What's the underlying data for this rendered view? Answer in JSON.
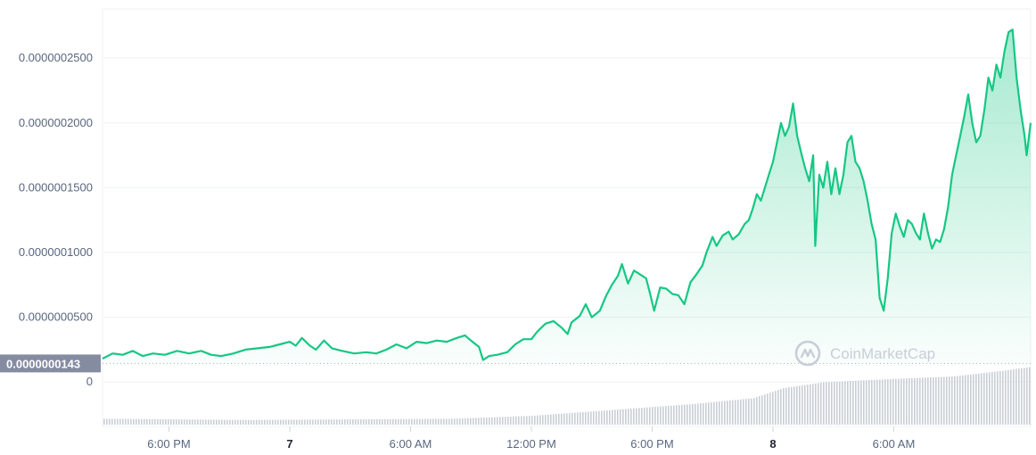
{
  "chart_data": {
    "type": "area",
    "y_ticks": [
      {
        "value": 2.5e-07,
        "label": "0.0000002500"
      },
      {
        "value": 2e-07,
        "label": "0.0000002000"
      },
      {
        "value": 1.5e-07,
        "label": "0.0000001500"
      },
      {
        "value": 1e-07,
        "label": "0.0000001000"
      },
      {
        "value": 5e-08,
        "label": "0.0000000500"
      }
    ],
    "ylim": [
      1.25e-08,
      2.88e-07
    ],
    "volume_zero_label": "0",
    "reference_price": {
      "value": 1.43e-08,
      "label": "0.0000000143"
    },
    "x_ticks": [
      {
        "label": "6:00 PM",
        "t": 6,
        "bold": false
      },
      {
        "label": "7",
        "t": 12,
        "bold": true
      },
      {
        "label": "6:00 AM",
        "t": 18,
        "bold": false
      },
      {
        "label": "12:00 PM",
        "t": 24,
        "bold": false
      },
      {
        "label": "6:00 PM",
        "t": 30,
        "bold": false
      },
      {
        "label": "8",
        "t": 36,
        "bold": true
      },
      {
        "label": "6:00 AM",
        "t": 42,
        "bold": false
      }
    ],
    "xlim": [
      2.7,
      48.8
    ],
    "price_series": [
      [
        2.7,
        1.8e-08
      ],
      [
        3.2,
        2.2e-08
      ],
      [
        3.7,
        2.1e-08
      ],
      [
        4.2,
        2.4e-08
      ],
      [
        4.7,
        2e-08
      ],
      [
        5.2,
        2.2e-08
      ],
      [
        5.8,
        2.1e-08
      ],
      [
        6.4,
        2.4e-08
      ],
      [
        7.0,
        2.2e-08
      ],
      [
        7.6,
        2.4e-08
      ],
      [
        8.1,
        2.1e-08
      ],
      [
        8.6,
        2e-08
      ],
      [
        9.2,
        2.2e-08
      ],
      [
        9.8,
        2.5e-08
      ],
      [
        10.4,
        2.6e-08
      ],
      [
        11.0,
        2.7e-08
      ],
      [
        11.5,
        2.9e-08
      ],
      [
        12.0,
        3.1e-08
      ],
      [
        12.3,
        2.8e-08
      ],
      [
        12.6,
        3.4e-08
      ],
      [
        13.0,
        2.8e-08
      ],
      [
        13.3,
        2.5e-08
      ],
      [
        13.7,
        3.2e-08
      ],
      [
        14.1,
        2.6e-08
      ],
      [
        14.6,
        2.4e-08
      ],
      [
        15.2,
        2.2e-08
      ],
      [
        15.8,
        2.3e-08
      ],
      [
        16.3,
        2.2e-08
      ],
      [
        16.8,
        2.5e-08
      ],
      [
        17.3,
        2.9e-08
      ],
      [
        17.8,
        2.6e-08
      ],
      [
        18.3,
        3.1e-08
      ],
      [
        18.8,
        3e-08
      ],
      [
        19.3,
        3.2e-08
      ],
      [
        19.8,
        3.1e-08
      ],
      [
        20.3,
        3.4e-08
      ],
      [
        20.7,
        3.6e-08
      ],
      [
        21.0,
        3.2e-08
      ],
      [
        21.4,
        2.7e-08
      ],
      [
        21.6,
        1.7e-08
      ],
      [
        21.9,
        2e-08
      ],
      [
        22.3,
        2.1e-08
      ],
      [
        22.8,
        2.3e-08
      ],
      [
        23.2,
        2.9e-08
      ],
      [
        23.6,
        3.3e-08
      ],
      [
        24.0,
        3.3e-08
      ],
      [
        24.3,
        3.9e-08
      ],
      [
        24.7,
        4.5e-08
      ],
      [
        25.1,
        4.7e-08
      ],
      [
        25.5,
        4.2e-08
      ],
      [
        25.8,
        3.7e-08
      ],
      [
        26.0,
        4.6e-08
      ],
      [
        26.4,
        5.1e-08
      ],
      [
        26.7,
        6e-08
      ],
      [
        27.0,
        5e-08
      ],
      [
        27.4,
        5.5e-08
      ],
      [
        27.7,
        6.6e-08
      ],
      [
        28.0,
        7.5e-08
      ],
      [
        28.3,
        8.2e-08
      ],
      [
        28.5,
        9.1e-08
      ],
      [
        28.8,
        7.6e-08
      ],
      [
        29.1,
        8.6e-08
      ],
      [
        29.4,
        8.3e-08
      ],
      [
        29.7,
        8e-08
      ],
      [
        29.9,
        6.8e-08
      ],
      [
        30.1,
        5.5e-08
      ],
      [
        30.4,
        7.3e-08
      ],
      [
        30.7,
        7.2e-08
      ],
      [
        31.0,
        6.8e-08
      ],
      [
        31.3,
        6.7e-08
      ],
      [
        31.6,
        6e-08
      ],
      [
        31.9,
        7.7e-08
      ],
      [
        32.2,
        8.3e-08
      ],
      [
        32.5,
        9e-08
      ],
      [
        32.7,
        1e-07
      ],
      [
        33.0,
        1.12e-07
      ],
      [
        33.2,
        1.05e-07
      ],
      [
        33.5,
        1.13e-07
      ],
      [
        33.8,
        1.16e-07
      ],
      [
        34.0,
        1.1e-07
      ],
      [
        34.3,
        1.14e-07
      ],
      [
        34.6,
        1.22e-07
      ],
      [
        34.8,
        1.25e-07
      ],
      [
        35.0,
        1.34e-07
      ],
      [
        35.2,
        1.45e-07
      ],
      [
        35.4,
        1.4e-07
      ],
      [
        35.6,
        1.5e-07
      ],
      [
        35.8,
        1.6e-07
      ],
      [
        36.0,
        1.7e-07
      ],
      [
        36.2,
        1.85e-07
      ],
      [
        36.4,
        2e-07
      ],
      [
        36.6,
        1.9e-07
      ],
      [
        36.8,
        1.97e-07
      ],
      [
        37.0,
        2.15e-07
      ],
      [
        37.2,
        1.9e-07
      ],
      [
        37.4,
        1.77e-07
      ],
      [
        37.6,
        1.65e-07
      ],
      [
        37.8,
        1.55e-07
      ],
      [
        38.0,
        1.75e-07
      ],
      [
        38.1,
        1.05e-07
      ],
      [
        38.3,
        1.6e-07
      ],
      [
        38.5,
        1.5e-07
      ],
      [
        38.7,
        1.7e-07
      ],
      [
        38.9,
        1.45e-07
      ],
      [
        39.1,
        1.65e-07
      ],
      [
        39.3,
        1.45e-07
      ],
      [
        39.5,
        1.6e-07
      ],
      [
        39.7,
        1.85e-07
      ],
      [
        39.9,
        1.9e-07
      ],
      [
        40.1,
        1.7e-07
      ],
      [
        40.3,
        1.65e-07
      ],
      [
        40.5,
        1.55e-07
      ],
      [
        40.7,
        1.4e-07
      ],
      [
        40.9,
        1.22e-07
      ],
      [
        41.1,
        1.1e-07
      ],
      [
        41.3,
        6.5e-08
      ],
      [
        41.5,
        5.5e-08
      ],
      [
        41.7,
        8e-08
      ],
      [
        41.9,
        1.15e-07
      ],
      [
        42.1,
        1.3e-07
      ],
      [
        42.3,
        1.2e-07
      ],
      [
        42.5,
        1.12e-07
      ],
      [
        42.7,
        1.25e-07
      ],
      [
        42.9,
        1.22e-07
      ],
      [
        43.1,
        1.15e-07
      ],
      [
        43.3,
        1.1e-07
      ],
      [
        43.5,
        1.3e-07
      ],
      [
        43.7,
        1.15e-07
      ],
      [
        43.9,
        1.03e-07
      ],
      [
        44.1,
        1.1e-07
      ],
      [
        44.3,
        1.08e-07
      ],
      [
        44.5,
        1.18e-07
      ],
      [
        44.7,
        1.35e-07
      ],
      [
        44.9,
        1.6e-07
      ],
      [
        45.1,
        1.75e-07
      ],
      [
        45.3,
        1.9e-07
      ],
      [
        45.5,
        2.05e-07
      ],
      [
        45.7,
        2.22e-07
      ],
      [
        45.9,
        2e-07
      ],
      [
        46.1,
        1.85e-07
      ],
      [
        46.3,
        1.9e-07
      ],
      [
        46.5,
        2.1e-07
      ],
      [
        46.7,
        2.35e-07
      ],
      [
        46.9,
        2.25e-07
      ],
      [
        47.1,
        2.45e-07
      ],
      [
        47.3,
        2.35e-07
      ],
      [
        47.5,
        2.55e-07
      ],
      [
        47.7,
        2.7e-07
      ],
      [
        47.9,
        2.72e-07
      ],
      [
        48.1,
        2.35e-07
      ],
      [
        48.3,
        2.1e-07
      ],
      [
        48.5,
        1.9e-07
      ],
      [
        48.6,
        1.75e-07
      ],
      [
        48.8,
        2e-07
      ]
    ],
    "volume_profile": [
      [
        2.7,
        0.1
      ],
      [
        10.0,
        0.08
      ],
      [
        20.0,
        0.1
      ],
      [
        24.0,
        0.15
      ],
      [
        28.0,
        0.25
      ],
      [
        32.0,
        0.35
      ],
      [
        35.0,
        0.45
      ],
      [
        36.5,
        0.62
      ],
      [
        38.5,
        0.72
      ],
      [
        41.5,
        0.77
      ],
      [
        45.0,
        0.82
      ],
      [
        47.5,
        0.92
      ],
      [
        48.8,
        0.98
      ]
    ],
    "grid": true,
    "colors": {
      "line": "#16c784",
      "fill_top": "#16c784",
      "volume": "#c9ced6",
      "reference_label_bg": "#858ca2",
      "reference_line": "#a6b0c3"
    }
  },
  "watermark": {
    "text": "CoinMarketCap",
    "icon": "coinmarketcap-logo-icon"
  }
}
